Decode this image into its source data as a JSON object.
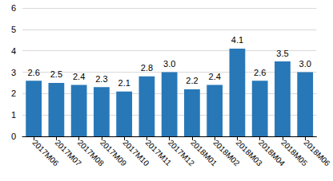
{
  "chart_data": {
    "type": "bar",
    "categories": [
      "2017M06",
      "2017M07",
      "2017M08",
      "2017M09",
      "2017M10",
      "2017M11",
      "2017M12",
      "2018M01",
      "2018M02",
      "2018M03",
      "2018M04",
      "2018M05",
      "2018M06"
    ],
    "values": [
      2.6,
      2.5,
      2.4,
      2.3,
      2.1,
      2.8,
      3,
      2.2,
      2.4,
      4.1,
      2.6,
      3.5,
      3
    ],
    "value_labels": [
      "2.6",
      "2.5",
      "2.4",
      "2.3",
      "2.1",
      "2.8",
      "3.0",
      "2.2",
      "2.4",
      "4.1",
      "2.6",
      "3.5",
      "3.0"
    ],
    "color": "#2878b8",
    "ylim": [
      0,
      6
    ],
    "yticks": [
      0,
      1,
      2,
      3,
      4,
      5,
      6
    ],
    "grid": true,
    "data_labels": true
  }
}
